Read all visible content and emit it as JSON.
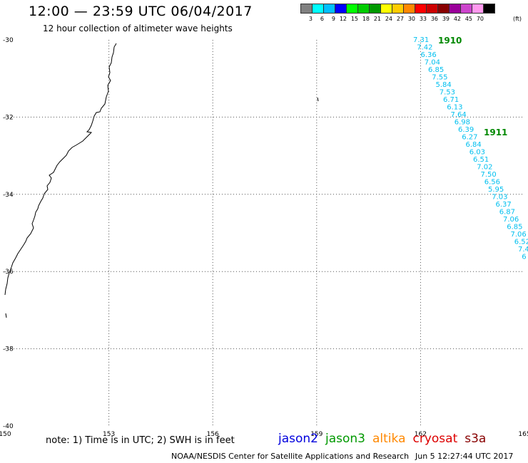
{
  "header": {
    "title": "12:00 — 23:59 UTC 06/04/2017",
    "subtitle": "12 hour collection of altimeter wave heights"
  },
  "legend": {
    "colors": [
      "#808080",
      "#00ffff",
      "#00bfff",
      "#0000ff",
      "#00ff00",
      "#00cc00",
      "#009900",
      "#ffff00",
      "#ffcc00",
      "#ff8800",
      "#ff0000",
      "#cc0000",
      "#880000",
      "#990099",
      "#cc44cc",
      "#ff99ee",
      "#000000"
    ],
    "labels": [
      "3",
      "6",
      "9",
      "12",
      "15",
      "18",
      "21",
      "24",
      "27",
      "30",
      "33",
      "36",
      "39",
      "42",
      "45",
      "70"
    ],
    "units": "(ft)"
  },
  "map": {
    "lat_labels": [
      "-30",
      "-32",
      "-34",
      "-36",
      "-38",
      "-40"
    ],
    "lon_labels": [
      "150",
      "153",
      "156",
      "159",
      "162",
      "165"
    ],
    "lat_range": [
      -40,
      -30
    ],
    "lon_range": [
      150,
      165
    ],
    "track_color": "#00bfef",
    "pass_label_color": "#008800",
    "passes": [
      {
        "id": "1910",
        "values": [
          "7.31",
          "7.42",
          "6.36",
          "7.04",
          "6.85",
          "7.55",
          "5.84",
          "7.53",
          "6.71",
          "6.13",
          "7.64",
          "6.98",
          "6.39",
          "6.27",
          "6.84",
          "6.03",
          "6.51",
          "7.02",
          "7.50",
          "6.56",
          "5.95",
          "7.03",
          "6.37",
          "6.87",
          "7.06",
          "6.85",
          "7.06",
          "6.52",
          "7.4",
          "6"
        ]
      }
    ],
    "extra_pass_label": "1911"
  },
  "footer": {
    "note": "note: 1) Time is in UTC; 2) SWH is in feet",
    "missions": [
      {
        "name": "jason2",
        "color": "#0000dd"
      },
      {
        "name": "jason3",
        "color": "#009900"
      },
      {
        "name": "altika",
        "color": "#ff8800"
      },
      {
        "name": "cryosat",
        "color": "#dd0000"
      },
      {
        "name": "s3a",
        "color": "#880000"
      }
    ],
    "credit": "NOAA/NESDIS Center for Satellite Applications and Research",
    "datestamp": "Jun  5 12:27:44 UTC 2017"
  }
}
